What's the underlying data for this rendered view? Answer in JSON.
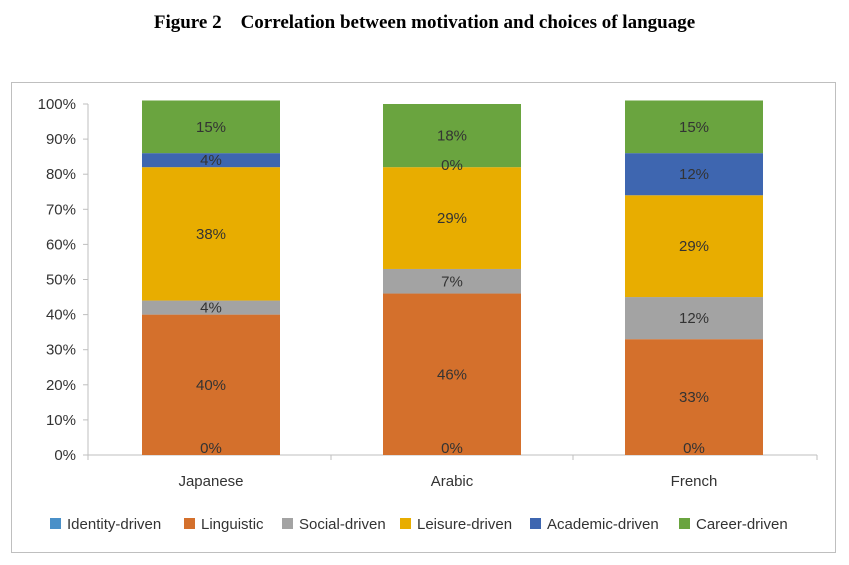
{
  "figure_title": "Figure 2    Correlation between motivation and choices of language",
  "chart_data": {
    "type": "bar",
    "stacked": true,
    "percent": true,
    "categories": [
      "Japanese",
      "Arabic",
      "French"
    ],
    "ylim": [
      0,
      100
    ],
    "yticks": [
      "0%",
      "10%",
      "20%",
      "30%",
      "40%",
      "50%",
      "60%",
      "70%",
      "80%",
      "90%",
      "100%"
    ],
    "grid": false,
    "legend_position": "bottom",
    "series": [
      {
        "name": "Identity-driven",
        "color": "#4a90c8",
        "values": [
          0,
          0,
          0
        ],
        "labels": [
          "0%",
          "0%",
          "0%"
        ]
      },
      {
        "name": "Linguistic",
        "color": "#d4702c",
        "values": [
          40,
          46,
          33
        ],
        "labels": [
          "40%",
          "46%",
          "33%"
        ]
      },
      {
        "name": "Social-driven",
        "color": "#a3a3a3",
        "values": [
          4,
          7,
          12
        ],
        "labels": [
          "4%",
          "7%",
          "12%"
        ]
      },
      {
        "name": "Leisure-driven",
        "color": "#e8ad00",
        "values": [
          38,
          29,
          29
        ],
        "labels": [
          "38%",
          "29%",
          "29%"
        ]
      },
      {
        "name": "Academic-driven",
        "color": "#3e66b0",
        "values": [
          4,
          0,
          12
        ],
        "labels": [
          "4%",
          "0%",
          "12%"
        ]
      },
      {
        "name": "Career-driven",
        "color": "#6aa43f",
        "values": [
          15,
          18,
          15
        ],
        "labels": [
          "15%",
          "18%",
          "15%"
        ]
      }
    ]
  }
}
